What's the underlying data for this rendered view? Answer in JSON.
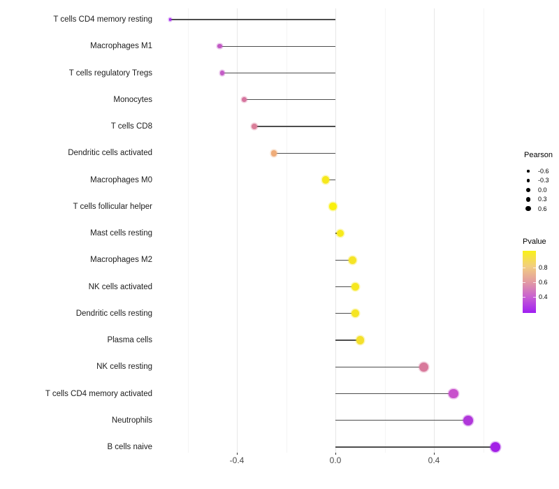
{
  "chart_data": {
    "type": "scatter",
    "subtype": "lollipop",
    "orientation": "horizontal",
    "title": "",
    "xlabel": "",
    "ylabel": "",
    "xlim": [
      -0.74,
      0.72
    ],
    "grid": "major-and-minor-vertical",
    "x_axis": {
      "major_ticks": [
        {
          "value": -0.4,
          "label": "-0.4"
        },
        {
          "value": 0.0,
          "label": "0.0"
        },
        {
          "value": 0.4,
          "label": "0.4"
        }
      ],
      "minor_ticks": [
        -0.6,
        -0.2,
        0.2,
        0.6
      ]
    },
    "rows": [
      {
        "label": "T cells CD4 memory resting",
        "pearson": -0.67,
        "color": "#A42AEC"
      },
      {
        "label": "Macrophages M1",
        "pearson": -0.47,
        "color": "#C158C4"
      },
      {
        "label": "T cells regulatory  Tregs",
        "pearson": -0.46,
        "color": "#C35BC6"
      },
      {
        "label": "Monocytes",
        "pearson": -0.37,
        "color": "#D6749E"
      },
      {
        "label": "T cells CD8",
        "pearson": -0.33,
        "color": "#DA7E99"
      },
      {
        "label": "Dendritic cells activated",
        "pearson": -0.25,
        "color": "#EFAC79"
      },
      {
        "label": "Macrophages M0",
        "pearson": -0.04,
        "color": "#F6E81C"
      },
      {
        "label": "T cells follicular helper",
        "pearson": -0.01,
        "color": "#FAF00D"
      },
      {
        "label": "Mast cells resting",
        "pearson": 0.02,
        "color": "#F7EA1B"
      },
      {
        "label": "Macrophages M2",
        "pearson": 0.07,
        "color": "#F5E426"
      },
      {
        "label": "NK cells activated",
        "pearson": 0.08,
        "color": "#F6E71F"
      },
      {
        "label": "Dendritic cells resting",
        "pearson": 0.08,
        "color": "#F5E522"
      },
      {
        "label": "Plasma cells",
        "pearson": 0.1,
        "color": "#F4E02C"
      },
      {
        "label": "NK cells resting",
        "pearson": 0.36,
        "color": "#D8799B"
      },
      {
        "label": "T cells CD4 memory activated",
        "pearson": 0.48,
        "color": "#C851CC"
      },
      {
        "label": "Neutrophils",
        "pearson": 0.54,
        "color": "#B037DA"
      },
      {
        "label": "B cells naive",
        "pearson": 0.65,
        "color": "#A21FE6"
      }
    ],
    "legend_size": {
      "title": "Pearson",
      "items": [
        {
          "value": -0.6,
          "label": "-0.6"
        },
        {
          "value": -0.3,
          "label": "-0.3"
        },
        {
          "value": 0.0,
          "label": "0.0"
        },
        {
          "value": 0.3,
          "label": "0.3"
        },
        {
          "value": 0.6,
          "label": "0.6"
        }
      ],
      "dot_color": "#000000"
    },
    "legend_color": {
      "title": "Pvalue",
      "tick_labels": [
        "0.8",
        "0.6",
        "0.4"
      ],
      "gradient_top_to_bottom": [
        "#F9F118",
        "#F2CE80",
        "#E39BA2",
        "#C75ED3",
        "#A01FF2"
      ]
    },
    "colors": {
      "stick": "#4d4d4d",
      "grid_major": "#e7e7e7",
      "grid_minor": "#f4f4f4",
      "background": "#ffffff"
    }
  }
}
